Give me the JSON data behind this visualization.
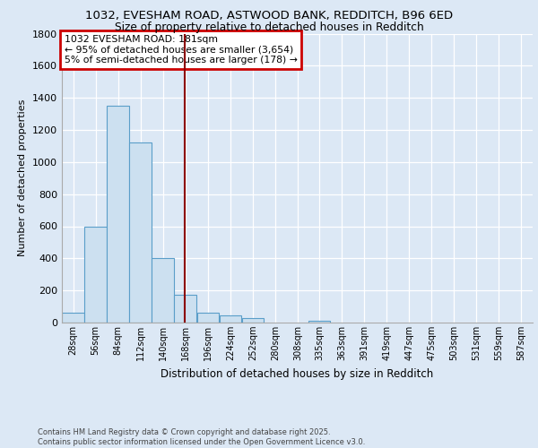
{
  "title_line1": "1032, EVESHAM ROAD, ASTWOOD BANK, REDDITCH, B96 6ED",
  "title_line2": "Size of property relative to detached houses in Redditch",
  "xlabel": "Distribution of detached houses by size in Redditch",
  "ylabel": "Number of detached properties",
  "bin_edges": [
    28,
    56,
    84,
    112,
    140,
    168,
    196,
    224,
    252,
    280,
    308,
    335,
    363,
    391,
    419,
    447,
    475,
    503,
    531,
    559,
    587
  ],
  "bar_heights": [
    60,
    600,
    1350,
    1120,
    400,
    175,
    60,
    45,
    30,
    0,
    0,
    10,
    0,
    0,
    0,
    0,
    0,
    0,
    0,
    0
  ],
  "bar_color": "#cce0f0",
  "bar_edge_color": "#5a9ec9",
  "vline_x": 181,
  "vline_color": "#8b0000",
  "annotation_title": "1032 EVESHAM ROAD: 181sqm",
  "annotation_line2": "← 95% of detached houses are smaller (3,654)",
  "annotation_line3": "5% of semi-detached houses are larger (178) →",
  "annotation_box_color": "#ffffff",
  "annotation_box_edge": "#cc0000",
  "ylim": [
    0,
    1800
  ],
  "yticks": [
    0,
    200,
    400,
    600,
    800,
    1000,
    1200,
    1400,
    1600,
    1800
  ],
  "background_color": "#dce8f5",
  "footer_line1": "Contains HM Land Registry data © Crown copyright and database right 2025.",
  "footer_line2": "Contains public sector information licensed under the Open Government Licence v3.0."
}
